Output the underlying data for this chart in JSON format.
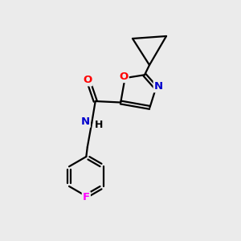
{
  "background_color": "#ebebeb",
  "bond_color": "#000000",
  "atom_colors": {
    "O": "#ff0000",
    "N": "#0000cd",
    "F": "#ff00ff",
    "C": "#000000",
    "H": "#000000"
  },
  "bond_width": 1.6,
  "figsize": [
    3.0,
    3.0
  ],
  "dpi": 100
}
